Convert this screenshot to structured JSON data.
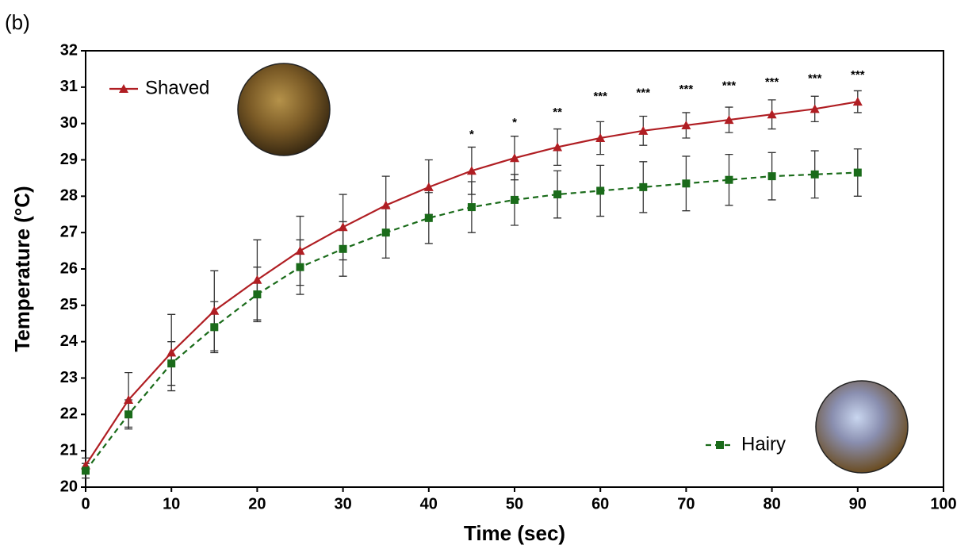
{
  "chart_data": {
    "type": "line",
    "panel_label": "(b)",
    "x_label": "Time (sec)",
    "y_label": "Temperature (°C)",
    "x": [
      0,
      5,
      10,
      15,
      20,
      25,
      30,
      35,
      40,
      45,
      50,
      55,
      60,
      65,
      70,
      75,
      80,
      85,
      90
    ],
    "series": [
      {
        "name": "Shaved",
        "color": "#b01e23",
        "marker": "triangle",
        "line_style": "solid",
        "legend_loc": "upper left",
        "values": [
          20.6,
          22.4,
          23.7,
          24.85,
          25.7,
          26.5,
          27.15,
          27.75,
          28.25,
          28.7,
          29.05,
          29.35,
          29.6,
          29.8,
          29.95,
          30.1,
          30.25,
          30.4,
          30.6
        ],
        "errors": [
          0.2,
          0.75,
          1.05,
          1.1,
          1.1,
          0.95,
          0.9,
          0.8,
          0.75,
          0.65,
          0.6,
          0.5,
          0.45,
          0.4,
          0.35,
          0.35,
          0.4,
          0.35,
          0.3
        ]
      },
      {
        "name": "Hairy",
        "color": "#1a6b1a",
        "marker": "square",
        "line_style": "dashed",
        "legend_loc": "lower right",
        "values": [
          20.45,
          22.0,
          23.4,
          24.4,
          25.3,
          26.05,
          26.55,
          27.0,
          27.4,
          27.7,
          27.9,
          28.05,
          28.15,
          28.25,
          28.35,
          28.45,
          28.55,
          28.6,
          28.65
        ],
        "errors": [
          0.2,
          0.4,
          0.6,
          0.7,
          0.75,
          0.75,
          0.75,
          0.7,
          0.7,
          0.7,
          0.7,
          0.65,
          0.7,
          0.7,
          0.75,
          0.7,
          0.65,
          0.65,
          0.65
        ]
      }
    ],
    "annotations": [
      {
        "x": 45,
        "text": "*"
      },
      {
        "x": 50,
        "text": "*"
      },
      {
        "x": 55,
        "text": "**"
      },
      {
        "x": 60,
        "text": "***"
      },
      {
        "x": 65,
        "text": "***"
      },
      {
        "x": 70,
        "text": "***"
      },
      {
        "x": 75,
        "text": "***"
      },
      {
        "x": 80,
        "text": "***"
      },
      {
        "x": 85,
        "text": "***"
      },
      {
        "x": 90,
        "text": "***"
      }
    ],
    "xlim": [
      0,
      100
    ],
    "xticks": [
      0,
      10,
      20,
      30,
      40,
      50,
      60,
      70,
      80,
      90,
      100
    ],
    "ylim": [
      20,
      32
    ],
    "yticks": [
      20,
      21,
      22,
      23,
      24,
      25,
      26,
      27,
      28,
      29,
      30,
      31,
      32
    ],
    "grid": false
  }
}
